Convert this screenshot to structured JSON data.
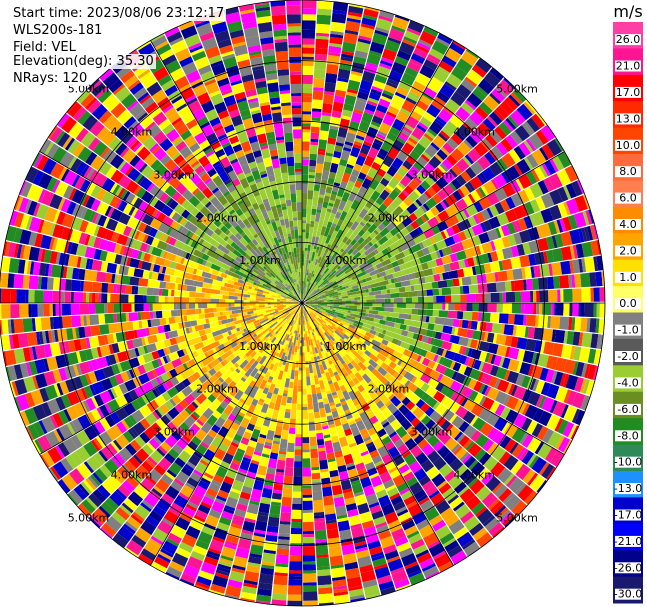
{
  "header": {
    "start_time": "Start time: 2023/08/06 23:12:17",
    "instrument": "WLS200s-181",
    "field": "Field: VEL",
    "elevation": "Elevation(deg): 35.30",
    "nrays": "NRays: 120"
  },
  "chart_data": {
    "type": "heatmap",
    "projection": "polar-ppi",
    "field": "VEL",
    "nrays": 120,
    "max_range_km": 5.0,
    "ring_ranges_km": [
      1.0,
      2.0,
      3.0,
      4.0,
      5.0
    ],
    "ring_labels": [
      "1.00km",
      "2.00km",
      "3.00km",
      "4.00km",
      "5.00km"
    ],
    "spoke_angles_deg": [
      0,
      30,
      60,
      90,
      120,
      150
    ],
    "colorbar": {
      "units": "m/s",
      "tick_labels": [
        "26.0",
        "21.0",
        "17.0",
        "13.0",
        "10.0",
        "8.0",
        "6.0",
        "4.0",
        "2.0",
        "1.0",
        "0.0",
        "-1.0",
        "-2.0",
        "-4.0",
        "-6.0",
        "-8.0",
        "-10.0",
        "-13.0",
        "-17.0",
        "-21.0",
        "-26.0",
        "-30.0"
      ],
      "bin_colors": [
        "#ff3fa5",
        "#ff1493",
        "#ff0000",
        "#ff2a00",
        "#ff4500",
        "#ff6b3d",
        "#ff7f50",
        "#ff8c00",
        "#ffa500",
        "#ffe000",
        "#ffff66",
        "#808080",
        "#5a5a5a",
        "#9acd32",
        "#6b8e23",
        "#228b22",
        "#2e8b57",
        "#1e90ff",
        "#0000cd",
        "#0000ff",
        "#00008b",
        "#191970"
      ]
    },
    "pattern": {
      "near_range_km": 2.3,
      "positive_sector_deg": [
        25,
        200
      ],
      "negative_sector_deg": [
        200,
        385
      ],
      "near_positive_colors": [
        "#ffff00",
        "#ffff00",
        "#ffd400",
        "#ffa500",
        "#ff8c00",
        "#808080"
      ],
      "near_negative_colors": [
        "#9acd32",
        "#6b8e23",
        "#228b22",
        "#808080",
        "#9acd32"
      ],
      "far_colors": [
        "#ff1493",
        "#ff0000",
        "#ffa500",
        "#ffff00",
        "#9acd32",
        "#228b22",
        "#191970",
        "#0000cd",
        "#ff00ff",
        "#808080",
        "#ff4500",
        "#00008b"
      ]
    }
  }
}
